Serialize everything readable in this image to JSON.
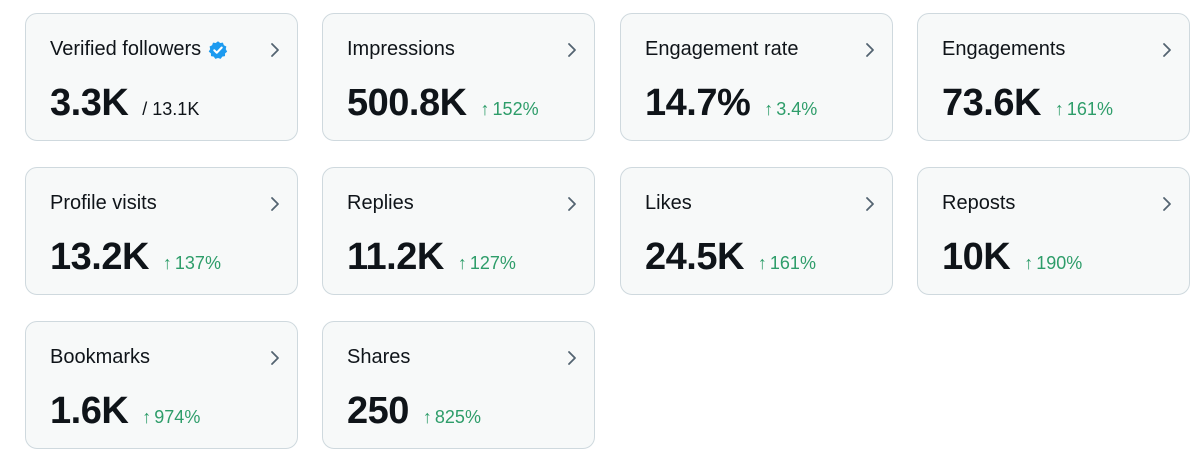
{
  "colors": {
    "positive": "#2e9d6a",
    "verified": "#1d9bf0",
    "card_bg": "#f7f9f9",
    "card_border": "#cfd9de"
  },
  "cards": [
    {
      "label": "Verified followers",
      "value": "3.3K",
      "total": "/ 13.1K",
      "verified": true
    },
    {
      "label": "Impressions",
      "value": "500.8K",
      "arrow": "↑",
      "change": "152%"
    },
    {
      "label": "Engagement rate",
      "value": "14.7%",
      "arrow": "↑",
      "change": "3.4%"
    },
    {
      "label": "Engagements",
      "value": "73.6K",
      "arrow": "↑",
      "change": "161%"
    },
    {
      "label": "Profile visits",
      "value": "13.2K",
      "arrow": "↑",
      "change": "137%"
    },
    {
      "label": "Replies",
      "value": "11.2K",
      "arrow": "↑",
      "change": "127%"
    },
    {
      "label": "Likes",
      "value": "24.5K",
      "arrow": "↑",
      "change": "161%"
    },
    {
      "label": "Reposts",
      "value": "10K",
      "arrow": "↑",
      "change": "190%"
    },
    {
      "label": "Bookmarks",
      "value": "1.6K",
      "arrow": "↑",
      "change": "974%"
    },
    {
      "label": "Shares",
      "value": "250",
      "arrow": "↑",
      "change": "825%"
    }
  ]
}
